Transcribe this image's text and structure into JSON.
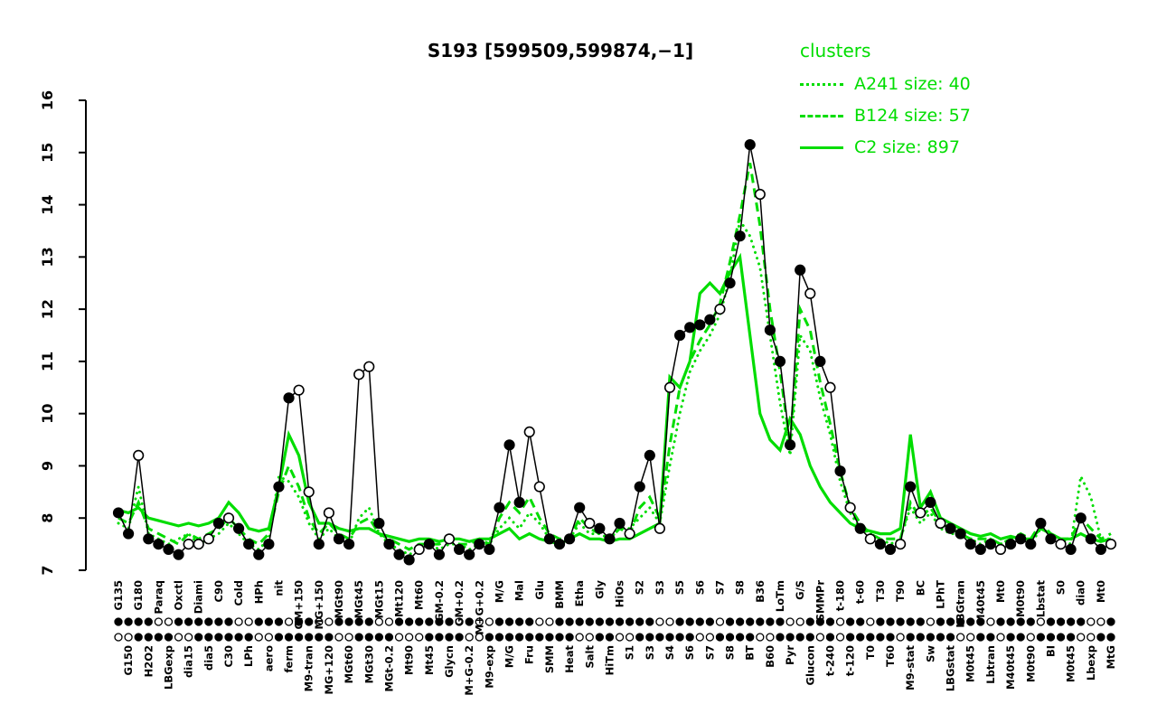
{
  "colors": {
    "cluster": "#00dd00",
    "data": "#000000",
    "background": "#ffffff"
  },
  "legend": {
    "title": "clusters"
  },
  "axis": {
    "y_ticks": [
      7,
      8,
      9,
      10,
      11,
      12,
      13,
      14,
      15,
      16
    ]
  },
  "chart_data": {
    "type": "line",
    "title": "S193 [599509,599874,−1]",
    "ylim": [
      7,
      16
    ],
    "grid": false,
    "legend_position": "top-right",
    "categories": [
      "G135",
      "G150",
      "G180",
      "H2O2",
      "Paraq",
      "LBGexp",
      "Oxctl",
      "dia15",
      "Diami",
      "dia5",
      "C90",
      "C30",
      "Cold",
      "LPh",
      "HPh",
      "aero",
      "nit",
      "ferm",
      "GM+150",
      "M9-tran",
      "MG+150",
      "MG+120",
      "MGt90",
      "MGt60",
      "MGt45",
      "MGt30",
      "MGt15",
      "MGt-0.2",
      "Mt120",
      "Mt90",
      "Mt60",
      "Mt45",
      "GM-0.2",
      "Glycn",
      "GM+0.2",
      "M+G-0.2",
      "M+G+0.2",
      "M9-exp",
      "M/G",
      "M/G",
      "Mal",
      "Fru",
      "Glu",
      "SMM",
      "BMM",
      "Heat",
      "Etha",
      "Salt",
      "Gly",
      "HiTm",
      "HiOs",
      "S1",
      "S2",
      "S3",
      "S3",
      "S4",
      "S5",
      "S6",
      "S6",
      "S7",
      "S7",
      "S8",
      "S8",
      "BT",
      "B36",
      "B60",
      "LoTm",
      "Pyr",
      "G/S",
      "Glucon",
      "SMMPr",
      "t-240",
      "t-180",
      "t-120",
      "t-60",
      "T0",
      "T30",
      "T60",
      "T90",
      "M9-stat",
      "BC",
      "Sw",
      "LPhT",
      "LBGstat",
      "LBGtran",
      "M0t45",
      "M40t45",
      "Lbtran",
      "Mt0",
      "M40t45",
      "M0t90",
      "M0t90",
      "Lbstat",
      "BI",
      "S0",
      "M0t45",
      "dia0",
      "Lbexp",
      "Mt0",
      "MtG"
    ],
    "series": [
      {
        "name": "S193",
        "role": "data",
        "style": "solid",
        "color": "#000000",
        "markers": true,
        "marker_fill": [
          "ffoffffooo",
          "foffffffoo",
          "foffooffff",
          "offoffffff",
          "fooffffoff",
          "foffooffff",
          "offfoffffo",
          "fofofoffof",
          "ofofffffof",
          "ffffoffffo"
        ],
        "values": [
          8.1,
          7.7,
          9.2,
          7.6,
          7.5,
          7.4,
          7.3,
          7.5,
          7.5,
          7.6,
          7.9,
          8.0,
          7.8,
          7.5,
          7.3,
          7.5,
          8.6,
          10.3,
          10.45,
          8.5,
          7.5,
          8.1,
          7.6,
          7.5,
          10.75,
          10.9,
          7.9,
          7.5,
          7.3,
          7.2,
          7.4,
          7.5,
          7.3,
          7.6,
          7.4,
          7.3,
          7.5,
          7.4,
          8.2,
          9.4,
          8.3,
          9.65,
          8.6,
          7.6,
          7.5,
          7.6,
          8.2,
          7.9,
          7.8,
          7.6,
          7.9,
          7.7,
          8.6,
          9.2,
          7.8,
          10.5,
          11.5,
          11.65,
          11.7,
          11.8,
          12.0,
          12.5,
          13.4,
          15.15,
          14.2,
          11.6,
          11.0,
          9.4,
          12.75,
          12.3,
          11.0,
          10.5,
          8.9,
          8.2,
          7.8,
          7.6,
          7.5,
          7.4,
          7.5,
          8.6,
          8.1,
          8.3,
          7.9,
          7.8,
          7.7,
          7.5,
          7.4,
          7.5,
          7.4,
          7.5,
          7.6,
          7.5,
          7.9,
          7.6,
          7.5,
          7.4,
          8.0,
          7.6,
          7.4,
          7.5
        ]
      },
      {
        "name": "A241 size: 40",
        "role": "cluster",
        "size": 40,
        "style": "dotted",
        "color": "#00dd00",
        "values": [
          7.9,
          7.8,
          8.6,
          7.7,
          7.6,
          7.5,
          7.6,
          7.7,
          7.5,
          7.6,
          7.7,
          7.9,
          7.7,
          7.5,
          7.4,
          7.6,
          8.8,
          8.7,
          8.4,
          7.9,
          7.6,
          7.8,
          7.6,
          7.5,
          8.0,
          8.2,
          7.7,
          7.5,
          7.4,
          7.3,
          7.4,
          7.5,
          7.4,
          7.5,
          7.5,
          7.4,
          7.5,
          7.5,
          7.8,
          8.0,
          7.8,
          8.1,
          7.9,
          7.6,
          7.5,
          7.6,
          7.9,
          7.7,
          7.7,
          7.6,
          7.8,
          7.8,
          8.0,
          8.2,
          7.9,
          9.0,
          10.0,
          10.8,
          11.2,
          11.5,
          11.9,
          12.6,
          13.7,
          13.4,
          12.8,
          11.5,
          10.2,
          9.2,
          11.5,
          11.2,
          10.3,
          9.6,
          8.7,
          8.1,
          7.8,
          7.7,
          7.6,
          7.5,
          7.6,
          8.2,
          7.9,
          8.1,
          7.8,
          7.7,
          7.7,
          7.6,
          7.5,
          7.6,
          7.5,
          7.6,
          7.6,
          7.5,
          7.8,
          7.7,
          7.6,
          7.5,
          8.8,
          8.4,
          7.6,
          7.6
        ]
      },
      {
        "name": "B124 size: 57",
        "role": "cluster",
        "size": 57,
        "style": "dashed",
        "color": "#00dd00",
        "values": [
          8.0,
          7.9,
          8.3,
          7.8,
          7.7,
          7.6,
          7.5,
          7.7,
          7.6,
          7.7,
          7.8,
          8.0,
          7.8,
          7.6,
          7.5,
          7.7,
          8.5,
          9.0,
          8.6,
          8.0,
          7.7,
          7.9,
          7.7,
          7.6,
          7.9,
          8.0,
          7.7,
          7.6,
          7.5,
          7.4,
          7.5,
          7.5,
          7.5,
          7.6,
          7.5,
          7.5,
          7.6,
          7.5,
          8.0,
          8.3,
          8.1,
          8.4,
          8.0,
          7.7,
          7.6,
          7.6,
          8.0,
          7.8,
          7.7,
          7.6,
          7.8,
          7.7,
          8.2,
          8.4,
          8.0,
          9.4,
          10.5,
          11.0,
          11.4,
          11.7,
          12.1,
          12.9,
          13.8,
          14.8,
          13.6,
          12.0,
          10.8,
          9.4,
          12.0,
          11.6,
          10.6,
          9.8,
          8.9,
          8.2,
          7.9,
          7.7,
          7.6,
          7.6,
          7.6,
          8.3,
          8.0,
          8.2,
          7.9,
          7.8,
          7.7,
          7.6,
          7.6,
          7.6,
          7.5,
          7.6,
          7.7,
          7.6,
          7.9,
          7.7,
          7.6,
          7.6,
          8.0,
          7.8,
          7.6,
          7.7
        ]
      },
      {
        "name": "C2 size: 897",
        "role": "cluster",
        "size": 897,
        "style": "solid",
        "color": "#00dd00",
        "values": [
          8.15,
          8.1,
          8.2,
          8.0,
          7.95,
          7.9,
          7.85,
          7.9,
          7.85,
          7.9,
          8.0,
          8.3,
          8.1,
          7.8,
          7.75,
          7.8,
          8.6,
          9.6,
          9.2,
          8.3,
          7.9,
          7.9,
          7.8,
          7.75,
          7.8,
          7.8,
          7.7,
          7.65,
          7.6,
          7.55,
          7.6,
          7.6,
          7.55,
          7.6,
          7.6,
          7.55,
          7.6,
          7.6,
          7.7,
          7.8,
          7.6,
          7.7,
          7.6,
          7.55,
          7.5,
          7.6,
          7.7,
          7.6,
          7.6,
          7.55,
          7.6,
          7.6,
          7.7,
          7.8,
          7.9,
          10.7,
          10.5,
          11.0,
          12.3,
          12.5,
          12.3,
          12.7,
          13.0,
          11.5,
          10.0,
          9.5,
          9.3,
          9.9,
          9.6,
          9.0,
          8.6,
          8.3,
          8.1,
          7.9,
          7.8,
          7.75,
          7.7,
          7.7,
          7.8,
          9.6,
          8.2,
          8.5,
          8.0,
          7.9,
          7.8,
          7.7,
          7.65,
          7.7,
          7.6,
          7.65,
          7.6,
          7.6,
          7.8,
          7.7,
          7.6,
          7.6,
          7.7,
          7.6,
          7.55,
          7.6
        ]
      }
    ],
    "rug_rows": [
      {
        "fills": [
          "ffffooffff",
          "ffoofffoff",
          "ooffffooff",
          "ffffofooff",
          "ffooffffff",
          "ffffooffff",
          "offffffoof",
          "ffoffoffff",
          "fofffffoff",
          "ffoffffoof"
        ]
      },
      {
        "fills": [
          "ooffffooff",
          "ffffooffff",
          "ffooffffoo",
          "offffoofff",
          "ffffffooff",
          "ooffffffoo",
          "ffffooffff",
          "ofofffffof",
          "ffffooffof",
          "foffffooff"
        ]
      }
    ]
  }
}
